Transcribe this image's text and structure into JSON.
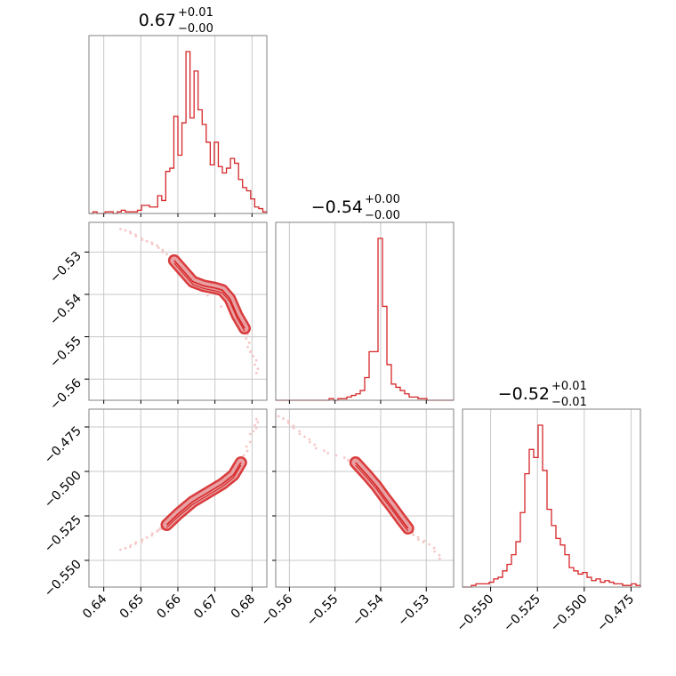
{
  "colors": {
    "accent": "#d62728",
    "fill": "#e8a0a2",
    "grid": "#c8c8c8",
    "scatter": "#f6c8c8",
    "frame": "#808080"
  },
  "chart_data": [
    {
      "type": "histogram",
      "panel": "hist-p0",
      "title": {
        "value": "0.67",
        "plus": "+0.01",
        "minus": "−0.00"
      },
      "xlim": [
        0.636,
        0.684
      ],
      "values": [
        0,
        1,
        0,
        0,
        1,
        1,
        0,
        1,
        2,
        1,
        1,
        1,
        2,
        5,
        5,
        4,
        4,
        11,
        8,
        26,
        28,
        60,
        36,
        56,
        100,
        59,
        88,
        64,
        55,
        44,
        30,
        44,
        29,
        25,
        28,
        34,
        31,
        21,
        16,
        14,
        9,
        4,
        3,
        1
      ],
      "grid": true
    },
    {
      "type": "histogram",
      "panel": "hist-p1",
      "title": {
        "value": "−0.54",
        "plus": "+0.00",
        "minus": "−0.00"
      },
      "xlim": [
        -0.563,
        -0.524
      ],
      "values": [
        0,
        0,
        0,
        0,
        0,
        0,
        0,
        0,
        0,
        0,
        0,
        0,
        1,
        0,
        1,
        1,
        2,
        3,
        4,
        6,
        14,
        30,
        30,
        100,
        58,
        22,
        10,
        8,
        6,
        4,
        2,
        2,
        1,
        1,
        0,
        0,
        0,
        0,
        0,
        0
      ],
      "grid": true
    },
    {
      "type": "histogram",
      "panel": "hist-p2",
      "title": {
        "value": "−0.52",
        "plus": "+0.01",
        "minus": "−0.01"
      },
      "xlim": [
        -0.565,
        -0.47
      ],
      "values": [
        0,
        0,
        1,
        2,
        2,
        2,
        3,
        5,
        6,
        10,
        14,
        20,
        28,
        46,
        70,
        85,
        80,
        100,
        72,
        48,
        38,
        30,
        26,
        20,
        12,
        10,
        8,
        9,
        6,
        4,
        5,
        3,
        4,
        3,
        2,
        2,
        1,
        1,
        2,
        1
      ],
      "grid": true
    },
    {
      "type": "contour",
      "panel": "pair-p0-p1",
      "xlim": [
        0.636,
        0.684
      ],
      "ylim": [
        -0.565,
        -0.523
      ],
      "curve": [
        [
          0.659,
          -0.532
        ],
        [
          0.662,
          -0.535
        ],
        [
          0.664,
          -0.537
        ],
        [
          0.667,
          -0.538
        ],
        [
          0.67,
          -0.5385
        ],
        [
          0.672,
          -0.539
        ],
        [
          0.674,
          -0.541
        ],
        [
          0.676,
          -0.545
        ],
        [
          0.678,
          -0.548
        ]
      ],
      "tail": [
        [
          0.645,
          -0.525
        ],
        [
          0.65,
          -0.527
        ],
        [
          0.655,
          -0.529
        ],
        [
          0.659,
          -0.532
        ],
        [
          0.678,
          -0.548
        ],
        [
          0.68,
          -0.554
        ],
        [
          0.682,
          -0.56
        ]
      ],
      "grid": true
    },
    {
      "type": "contour",
      "panel": "pair-p0-p2",
      "xlim": [
        0.636,
        0.684
      ],
      "ylim": [
        -0.565,
        -0.465
      ],
      "curve": [
        [
          0.657,
          -0.53
        ],
        [
          0.66,
          -0.524
        ],
        [
          0.664,
          -0.517
        ],
        [
          0.668,
          -0.512
        ],
        [
          0.672,
          -0.507
        ],
        [
          0.675,
          -0.502
        ],
        [
          0.677,
          -0.495
        ]
      ],
      "tail": [
        [
          0.645,
          -0.545
        ],
        [
          0.65,
          -0.54
        ],
        [
          0.655,
          -0.533
        ],
        [
          0.657,
          -0.53
        ],
        [
          0.677,
          -0.495
        ],
        [
          0.68,
          -0.48
        ],
        [
          0.682,
          -0.47
        ]
      ],
      "grid": true
    },
    {
      "type": "contour",
      "panel": "pair-p1-p2",
      "xlim": [
        -0.563,
        -0.524
      ],
      "ylim": [
        -0.565,
        -0.465
      ],
      "curve": [
        [
          -0.5455,
          -0.495
        ],
        [
          -0.543,
          -0.502
        ],
        [
          -0.541,
          -0.508
        ],
        [
          -0.539,
          -0.515
        ],
        [
          -0.5375,
          -0.52
        ],
        [
          -0.5355,
          -0.527
        ],
        [
          -0.534,
          -0.532
        ]
      ],
      "tail": [
        [
          -0.562,
          -0.47
        ],
        [
          -0.558,
          -0.478
        ],
        [
          -0.554,
          -0.487
        ],
        [
          -0.5455,
          -0.495
        ],
        [
          -0.534,
          -0.532
        ],
        [
          -0.53,
          -0.54
        ],
        [
          -0.526,
          -0.552
        ]
      ],
      "grid": true
    }
  ],
  "axes": {
    "p0_ticks": [
      "0.64",
      "0.65",
      "0.66",
      "0.67",
      "0.68"
    ],
    "p0_tick_values": [
      0.64,
      0.65,
      0.66,
      0.67,
      0.68
    ],
    "p1_ticks_x": [
      "−0.56",
      "−0.55",
      "−0.54",
      "−0.53"
    ],
    "p1_tick_values_x": [
      -0.56,
      -0.55,
      -0.54,
      -0.53
    ],
    "p1_ticks_y": [
      "−0.53",
      "−0.54",
      "−0.55",
      "−0.56"
    ],
    "p1_tick_values_y": [
      -0.53,
      -0.54,
      -0.55,
      -0.56
    ],
    "p2_ticks_y": [
      "−0.475",
      "−0.500",
      "−0.525",
      "−0.550"
    ],
    "p2_tick_values_y": [
      -0.475,
      -0.5,
      -0.525,
      -0.55
    ],
    "p2_ticks_x": [
      "−0.550",
      "−0.525",
      "−0.500",
      "−0.475"
    ],
    "p2_tick_values_x": [
      -0.55,
      -0.525,
      -0.5,
      -0.475
    ]
  }
}
